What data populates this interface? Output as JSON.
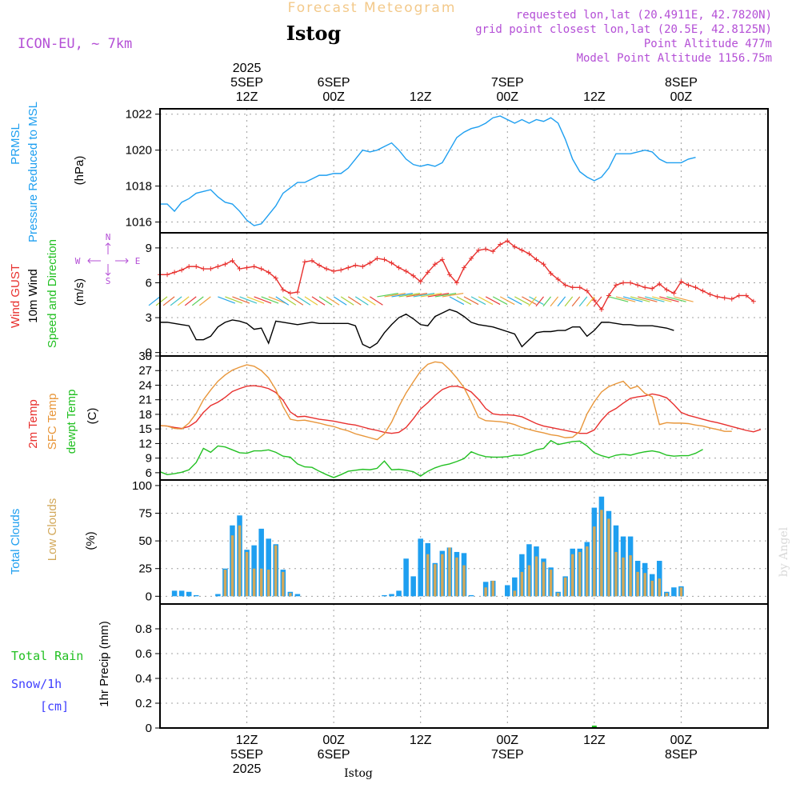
{
  "header": {
    "top_title": "Forecast Meteogram",
    "location": "Istog",
    "model": "ICON-EU, ~ 7km",
    "requested": "requested lon,lat (20.4911E, 42.7820N)",
    "gridpoint": "grid point closest lon,lat (20.5E, 42.8125N)",
    "point_alt": "Point Altitude 477m",
    "model_alt": "Model Point Altitude 1156.75m",
    "footer_location": "Istog",
    "credit": "by Angel"
  },
  "time_axis": {
    "top_labels": [
      {
        "lines": [
          "2025",
          "5SEP",
          "12Z"
        ],
        "hour": 12
      },
      {
        "lines": [
          "6SEP",
          "00Z"
        ],
        "hour": 24
      },
      {
        "lines": [
          "12Z"
        ],
        "hour": 36
      },
      {
        "lines": [
          "7SEP",
          "00Z"
        ],
        "hour": 48
      },
      {
        "lines": [
          "12Z"
        ],
        "hour": 60
      },
      {
        "lines": [
          "8SEP",
          "00Z"
        ],
        "hour": 72
      }
    ],
    "bottom_labels": [
      {
        "lines": [
          "12Z",
          "5SEP",
          "2025"
        ],
        "hour": 12
      },
      {
        "lines": [
          "00Z",
          "6SEP"
        ],
        "hour": 24
      },
      {
        "lines": [
          "12Z"
        ],
        "hour": 36
      },
      {
        "lines": [
          "00Z",
          "7SEP"
        ],
        "hour": 48
      },
      {
        "lines": [
          "12Z"
        ],
        "hour": 60
      },
      {
        "lines": [
          "00Z",
          "8SEP"
        ],
        "hour": 72
      }
    ]
  },
  "panel_labels": {
    "pressure": {
      "l1": "PRMSL",
      "l2": "Pressure Reduced to MSL",
      "unit": "(hPa)"
    },
    "wind": {
      "gust": "Wind GUST",
      "wind": "10m Wind",
      "speed": "Speed and Direction",
      "unit": "(m/s)",
      "compass_n": "N",
      "compass_s": "S",
      "compass_w": "W",
      "compass_e": "E"
    },
    "temp": {
      "t2m": "2m Temp",
      "sfc": "SFC Temp",
      "dew": "dewpt Temp",
      "unit": "(C)"
    },
    "cloud": {
      "total": "Total Clouds",
      "low": "Low Clouds",
      "unit": "(%)"
    },
    "precip": {
      "rain": "Total  Rain",
      "snow": "Snow/1h",
      "snow_unit": "[cm]",
      "title": "1hr Precip (mm)"
    }
  },
  "chart_data": [
    {
      "type": "line",
      "title": "PRMSL Pressure Reduced to MSL",
      "ylabel": "(hPa)",
      "ylim": [
        1015.4,
        1022.3
      ],
      "yticks": [
        1016,
        1018,
        1020,
        1022
      ],
      "color": "#1e9ff0",
      "x_start_hour": 0,
      "x_step_hours": 1,
      "series": [
        {
          "name": "PRMSL",
          "values": [
            1017.0,
            1017.0,
            1016.6,
            1017.1,
            1017.3,
            1017.6,
            1017.7,
            1017.8,
            1017.4,
            1017.1,
            1017.0,
            1016.6,
            1016.1,
            1015.8,
            1015.9,
            1016.4,
            1016.9,
            1017.6,
            1017.9,
            1018.2,
            1018.2,
            1018.4,
            1018.6,
            1018.6,
            1018.7,
            1018.7,
            1019.0,
            1019.5,
            1020.0,
            1019.9,
            1020.0,
            1020.2,
            1020.4,
            1020.0,
            1019.5,
            1019.2,
            1019.1,
            1019.2,
            1019.1,
            1019.3,
            1020.0,
            1020.7,
            1021.0,
            1021.2,
            1021.3,
            1021.5,
            1021.8,
            1021.9,
            1021.7,
            1021.5,
            1021.7,
            1021.5,
            1021.7,
            1021.6,
            1021.8,
            1021.5,
            1020.6,
            1019.5,
            1018.8,
            1018.5,
            1018.3,
            1018.5,
            1019.0,
            1019.8,
            1019.8,
            1019.8,
            1019.9,
            1020.0,
            1019.9,
            1019.5,
            1019.3,
            1019.3,
            1019.3,
            1019.5,
            1019.6
          ]
        }
      ]
    },
    {
      "type": "line",
      "title": "Wind GUST / 10m Wind",
      "ylabel": "(m/s)",
      "ylim": [
        -0.3,
        10.3
      ],
      "yticks": [
        0,
        3,
        6,
        9
      ],
      "x_start_hour": 0,
      "x_step_hours": 1,
      "series": [
        {
          "name": "Wind GUST",
          "color": "#e8302e",
          "values": [
            6.7,
            6.7,
            6.9,
            7.1,
            7.4,
            7.4,
            7.2,
            7.2,
            7.4,
            7.6,
            7.9,
            7.2,
            7.3,
            7.4,
            7.2,
            6.9,
            6.4,
            5.4,
            5.1,
            5.2,
            7.8,
            7.9,
            7.5,
            7.2,
            7.0,
            7.1,
            7.3,
            7.5,
            7.4,
            7.7,
            8.1,
            8.0,
            7.7,
            7.3,
            7.0,
            6.6,
            6.1,
            6.9,
            7.6,
            8.0,
            6.7,
            6.0,
            7.3,
            8.1,
            8.8,
            8.9,
            8.7,
            9.3,
            9.6,
            9.1,
            8.8,
            8.5,
            8.0,
            7.6,
            6.8,
            6.3,
            5.8,
            5.6,
            5.6,
            5.3,
            4.5,
            3.7,
            4.9,
            5.8,
            6.0,
            6.0,
            5.8,
            5.6,
            5.5,
            5.9,
            5.4,
            5.1,
            6.1,
            5.8,
            5.6,
            5.3,
            5.0,
            4.8,
            4.7,
            4.6,
            4.9,
            4.9,
            4.4
          ]
        },
        {
          "name": "10m Wind",
          "color": "#000000",
          "values": [
            2.6,
            2.6,
            2.5,
            2.4,
            2.3,
            1.1,
            1.1,
            1.4,
            2.2,
            2.6,
            2.8,
            2.7,
            2.5,
            2.0,
            2.1,
            0.8,
            2.7,
            2.6,
            2.5,
            2.4,
            2.5,
            2.6,
            2.5,
            2.5,
            2.5,
            2.5,
            2.5,
            2.3,
            0.7,
            0.4,
            0.8,
            1.7,
            2.4,
            3.0,
            3.3,
            2.9,
            2.4,
            2.3,
            3.1,
            3.4,
            3.7,
            3.5,
            3.1,
            2.6,
            2.4,
            2.3,
            2.2,
            2.0,
            1.8,
            1.6,
            0.5,
            1.1,
            1.7,
            1.8,
            1.8,
            1.9,
            1.9,
            2.2,
            2.2,
            1.4,
            1.9,
            2.6,
            2.6,
            2.5,
            2.4,
            2.4,
            2.3,
            2.3,
            2.3,
            2.2,
            2.1,
            1.9
          ]
        }
      ],
      "wind_barbs": "colored direction arrows along 10m wind line"
    },
    {
      "type": "line",
      "title": "2m Temp / SFC Temp / dewpt Temp",
      "ylabel": "(C)",
      "ylim": [
        4.5,
        30
      ],
      "yticks": [
        6,
        9,
        12,
        15,
        18,
        21,
        24,
        27,
        30
      ],
      "x_start_hour": 0,
      "x_step_hours": 1,
      "series": [
        {
          "name": "2m Temp",
          "color": "#e8302e",
          "values": [
            15.7,
            15.6,
            15.3,
            15.1,
            15.5,
            16.5,
            18.4,
            19.8,
            20.5,
            21.5,
            22.7,
            23.3,
            23.8,
            23.9,
            23.7,
            23.3,
            22.5,
            20.9,
            18.5,
            17.5,
            17.6,
            17.3,
            17.0,
            16.8,
            16.6,
            16.3,
            16.0,
            15.8,
            15.4,
            15.0,
            14.7,
            14.3,
            14.1,
            14.3,
            15.3,
            17.1,
            19.1,
            20.4,
            21.9,
            23.1,
            23.7,
            23.8,
            23.4,
            22.6,
            21.1,
            19.2,
            18.1,
            17.9,
            17.9,
            17.8,
            17.5,
            16.8,
            16.1,
            15.6,
            15.3,
            15.0,
            14.7,
            14.4,
            14.1,
            14.1,
            14.8,
            16.8,
            18.4,
            19.2,
            20.3,
            21.3,
            21.6,
            21.8,
            22.2,
            21.9,
            21.4,
            20.0,
            18.4,
            17.8,
            17.4,
            17.0,
            16.6,
            16.3,
            15.9,
            15.5,
            15.1,
            14.7,
            14.4,
            14.9
          ]
        },
        {
          "name": "SFC Temp",
          "color": "#e8963a",
          "values": [
            15.7,
            15.6,
            15.1,
            15.0,
            16.2,
            18.2,
            21.0,
            23.0,
            24.8,
            26.1,
            27.1,
            27.7,
            28.2,
            27.9,
            27.0,
            25.5,
            23.1,
            19.6,
            17.0,
            16.7,
            16.8,
            16.5,
            16.2,
            15.8,
            15.5,
            15.0,
            14.6,
            14.0,
            13.6,
            13.2,
            12.8,
            14.0,
            16.4,
            19.6,
            22.4,
            24.7,
            26.9,
            28.3,
            28.8,
            28.6,
            27.2,
            25.5,
            23.5,
            20.6,
            17.4,
            16.7,
            16.6,
            16.5,
            16.3,
            15.9,
            15.3,
            14.9,
            14.5,
            14.2,
            13.8,
            13.6,
            13.2,
            13.3,
            14.5,
            18.1,
            20.6,
            22.6,
            23.7,
            24.3,
            24.8,
            23.3,
            23.8,
            22.3,
            21.6,
            15.9,
            16.3,
            16.2,
            16.2,
            16.1,
            15.8,
            15.6,
            15.2,
            14.9,
            14.5,
            14.5
          ]
        },
        {
          "name": "dewpt Temp",
          "color": "#22c022",
          "values": [
            6.2,
            5.6,
            5.8,
            6.1,
            6.6,
            8.1,
            11.0,
            10.2,
            11.5,
            11.3,
            10.7,
            10.1,
            10.0,
            10.5,
            10.5,
            10.7,
            10.2,
            9.4,
            9.2,
            7.8,
            7.2,
            7.1,
            6.3,
            5.6,
            5.0,
            5.6,
            6.3,
            6.5,
            6.7,
            6.6,
            6.9,
            8.4,
            6.6,
            6.7,
            6.5,
            6.2,
            5.3,
            6.3,
            7.0,
            7.5,
            7.8,
            8.3,
            8.9,
            10.3,
            9.7,
            9.3,
            9.2,
            9.2,
            9.3,
            9.6,
            9.6,
            10.1,
            10.7,
            11.0,
            12.6,
            11.8,
            12.1,
            12.4,
            12.5,
            11.5,
            10.1,
            9.5,
            9.1,
            9.6,
            9.8,
            9.6,
            10.0,
            10.3,
            10.5,
            10.2,
            9.6,
            9.4,
            9.5,
            9.5,
            10.0,
            10.8
          ]
        }
      ]
    },
    {
      "type": "bar",
      "title": "Total Clouds / Low Clouds",
      "ylabel": "(%)",
      "ylim": [
        -7,
        105
      ],
      "yticks": [
        0,
        25,
        50,
        75,
        100
      ],
      "x_start_hour": 1,
      "x_step_hours": 1,
      "series": [
        {
          "name": "Total Clouds",
          "color": "#1e9ff0",
          "values": [
            0,
            5,
            5,
            4,
            1,
            0,
            0,
            2,
            25,
            64,
            73,
            42,
            46,
            61,
            52,
            47,
            24,
            4,
            2,
            0,
            0,
            0,
            0,
            0,
            0,
            0,
            0,
            0,
            0,
            0,
            1,
            2,
            5,
            34,
            18,
            52,
            48,
            30,
            41,
            44,
            40,
            39,
            1,
            0,
            13,
            14,
            0,
            10,
            17,
            38,
            47,
            45,
            34,
            26,
            4,
            18,
            43,
            43,
            49,
            80,
            90,
            77,
            64,
            54,
            54,
            32,
            30,
            20,
            32,
            4,
            8,
            9,
            0,
            0,
            0,
            0,
            0,
            0,
            0,
            0
          ]
        },
        {
          "name": "Low Clouds",
          "color": "#d2a85a",
          "values": [
            0,
            0,
            0,
            0,
            0,
            0,
            0,
            0,
            24,
            55,
            64,
            40,
            25,
            25,
            24,
            46,
            22,
            3,
            0,
            0,
            0,
            0,
            0,
            0,
            0,
            0,
            0,
            0,
            0,
            0,
            0,
            0,
            0,
            0,
            0,
            0,
            38,
            29,
            38,
            44,
            35,
            28,
            0,
            0,
            8,
            14,
            0,
            0,
            5,
            22,
            28,
            36,
            31,
            24,
            3,
            17,
            38,
            40,
            45,
            63,
            78,
            70,
            40,
            35,
            37,
            22,
            21,
            14,
            16,
            3,
            0,
            8,
            0,
            0,
            0,
            0,
            0,
            0,
            0,
            0
          ]
        }
      ]
    },
    {
      "type": "bar",
      "title": "1hr Precip (mm)",
      "ylabel": "1hr Precip (mm)",
      "ylim": [
        0,
        1.0
      ],
      "yticks": [
        0,
        0.2,
        0.4,
        0.6,
        0.8
      ],
      "series": [
        {
          "name": "Total Rain",
          "color": "#22c022",
          "values": []
        },
        {
          "name": "Snow/1h",
          "color": "#4040ff",
          "values": []
        }
      ]
    }
  ]
}
